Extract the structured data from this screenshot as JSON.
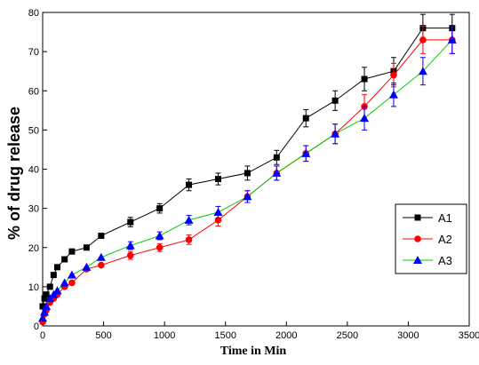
{
  "chart_data": {
    "type": "line",
    "xlabel": "Time in Min",
    "ylabel": "% of drug release",
    "xlim": [
      0,
      3500
    ],
    "ylim": [
      0,
      80
    ],
    "xticks": [
      0,
      500,
      1000,
      1500,
      2000,
      2500,
      3000,
      3500
    ],
    "yticks": [
      0,
      10,
      20,
      30,
      40,
      50,
      60,
      70,
      80
    ],
    "grid": false,
    "legend_position": "center-right",
    "series": [
      {
        "name": "A1",
        "color": "#000000",
        "marker": "square",
        "x": [
          0,
          15,
          30,
          60,
          90,
          120,
          180,
          240,
          360,
          480,
          720,
          960,
          1200,
          1440,
          1680,
          1920,
          2160,
          2400,
          2640,
          2880,
          3120,
          3360
        ],
        "y": [
          5,
          7,
          8,
          10,
          13,
          15,
          17,
          19,
          20,
          23,
          26.5,
          30,
          36,
          37.5,
          39,
          43,
          53,
          57.5,
          63,
          65,
          76,
          76
        ],
        "err": [
          0,
          0,
          0,
          0,
          0,
          0,
          0,
          0,
          0,
          0,
          1.2,
          1.2,
          1.5,
          1.5,
          1.8,
          1.8,
          2.2,
          2.5,
          3,
          3.5,
          3.5,
          3.5
        ]
      },
      {
        "name": "A2",
        "color": "#ff0000",
        "marker": "circle",
        "x": [
          0,
          15,
          30,
          60,
          90,
          120,
          180,
          240,
          360,
          480,
          720,
          960,
          1200,
          1440,
          1680,
          1920,
          2160,
          2400,
          2640,
          2880,
          3120,
          3360
        ],
        "y": [
          1,
          3,
          4,
          6,
          7,
          8,
          10,
          11,
          14.5,
          15.5,
          18,
          20,
          22,
          27,
          33,
          39,
          44,
          49,
          56,
          64,
          73,
          73
        ],
        "err": [
          0,
          0,
          0,
          0,
          0,
          0,
          0,
          0,
          0,
          0,
          1,
          1,
          1.2,
          1.5,
          1.5,
          1.8,
          2,
          2.5,
          3,
          3,
          3.5,
          3.5
        ]
      },
      {
        "name": "A3",
        "color": "#00cc00",
        "marker_color": "#0000ff",
        "marker": "triangle",
        "x": [
          0,
          15,
          30,
          60,
          90,
          120,
          180,
          240,
          360,
          480,
          720,
          960,
          1200,
          1440,
          1680,
          1920,
          2160,
          2400,
          2640,
          2880,
          3120,
          3360
        ],
        "y": [
          2,
          3.5,
          5,
          7,
          8,
          9,
          11,
          13,
          15,
          17.5,
          20.5,
          23,
          27,
          29,
          33,
          39,
          44,
          49,
          53,
          59,
          65,
          73
        ],
        "err": [
          0,
          0,
          0,
          0,
          0,
          0,
          0,
          0,
          0,
          0,
          1,
          1,
          1.2,
          1.5,
          1.5,
          1.8,
          2,
          2.5,
          3,
          3,
          3.5,
          3.5
        ]
      }
    ]
  }
}
